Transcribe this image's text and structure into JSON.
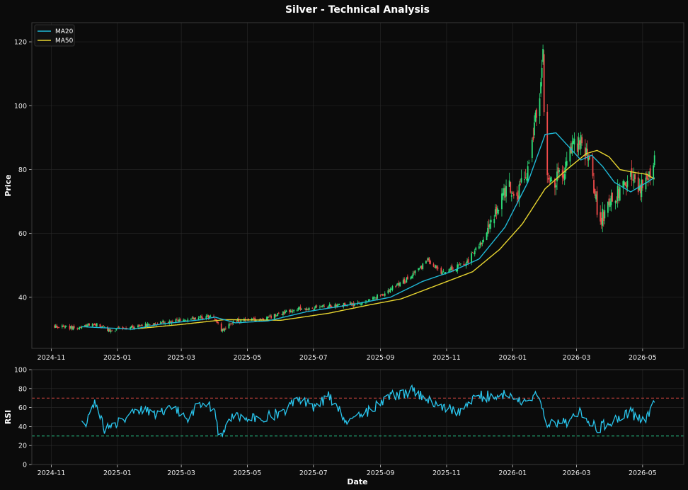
{
  "title": "Silver - Technical Analysis",
  "colors": {
    "background": "#0b0b0b",
    "up": "#2ee07a",
    "down": "#f04a4a",
    "ma20": "#1fb8d6",
    "ma50": "#e8d630",
    "rsi": "#29c6ee",
    "overbought": "#d0453f",
    "oversold": "#27c98a"
  },
  "chart_data": [
    {
      "type": "candlestick",
      "ylabel": "Price",
      "ylim": [
        24,
        126
      ],
      "yticks": [
        40,
        60,
        80,
        100,
        120
      ],
      "xticks": [
        "2024-11",
        "2025-01",
        "2025-03",
        "2025-05",
        "2025-07",
        "2025-09",
        "2025-11",
        "2026-01",
        "2026-03",
        "2026-05"
      ],
      "grid": true,
      "legend_position": "top-left",
      "legend": [
        "MA20",
        "MA50"
      ],
      "close_anchors": [
        [
          "2024-11-04",
          31.0
        ],
        [
          "2024-11-25",
          30.2
        ],
        [
          "2024-12-10",
          31.8
        ],
        [
          "2024-12-25",
          29.6
        ],
        [
          "2025-01-15",
          30.6
        ],
        [
          "2025-02-10",
          32.2
        ],
        [
          "2025-03-05",
          33.0
        ],
        [
          "2025-03-31",
          34.2
        ],
        [
          "2025-04-07",
          29.5
        ],
        [
          "2025-04-20",
          32.5
        ],
        [
          "2025-05-15",
          33.0
        ],
        [
          "2025-06-10",
          36.0
        ],
        [
          "2025-07-10",
          37.0
        ],
        [
          "2025-08-10",
          38.0
        ],
        [
          "2025-09-01",
          40.5
        ],
        [
          "2025-10-01",
          47.0
        ],
        [
          "2025-10-15",
          51.5
        ],
        [
          "2025-10-28",
          47.5
        ],
        [
          "2025-11-20",
          51.0
        ],
        [
          "2025-12-10",
          61.0
        ],
        [
          "2025-12-28",
          76.0
        ],
        [
          "2026-01-05",
          72.0
        ],
        [
          "2026-01-15",
          80.0
        ],
        [
          "2026-01-26",
          106.0
        ],
        [
          "2026-01-29",
          116.0
        ],
        [
          "2026-01-31",
          80.0
        ],
        [
          "2026-02-05",
          76.0
        ],
        [
          "2026-02-15",
          78.0
        ],
        [
          "2026-02-25",
          86.0
        ],
        [
          "2026-03-05",
          89.0
        ],
        [
          "2026-03-12",
          84.0
        ],
        [
          "2026-03-22",
          64.0
        ],
        [
          "2026-04-05",
          71.0
        ],
        [
          "2026-04-20",
          78.0
        ],
        [
          "2026-05-01",
          74.0
        ],
        [
          "2026-05-08",
          80.0
        ],
        [
          "2026-05-12",
          85.0
        ]
      ],
      "ma20_anchors": [
        [
          "2024-11-29",
          30.8
        ],
        [
          "2025-01-15",
          30.0
        ],
        [
          "2025-02-10",
          31.6
        ],
        [
          "2025-03-20",
          33.0
        ],
        [
          "2025-04-01",
          33.8
        ],
        [
          "2025-04-20",
          32.0
        ],
        [
          "2025-05-20",
          32.6
        ],
        [
          "2025-06-25",
          35.5
        ],
        [
          "2025-08-10",
          38.0
        ],
        [
          "2025-09-10",
          40.0
        ],
        [
          "2025-10-10",
          45.0
        ],
        [
          "2025-11-05",
          48.0
        ],
        [
          "2025-12-01",
          52.0
        ],
        [
          "2025-12-25",
          62.0
        ],
        [
          "2026-01-15",
          76.0
        ],
        [
          "2026-01-31",
          91.0
        ],
        [
          "2026-02-10",
          91.5
        ],
        [
          "2026-02-25",
          86.0
        ],
        [
          "2026-03-05",
          83.0
        ],
        [
          "2026-03-15",
          84.5
        ],
        [
          "2026-03-25",
          81.0
        ],
        [
          "2026-04-05",
          76.0
        ],
        [
          "2026-04-20",
          73.0
        ],
        [
          "2026-05-05",
          76.0
        ],
        [
          "2026-05-12",
          77.5
        ]
      ],
      "ma50_anchors": [
        [
          "2025-01-20",
          30.2
        ],
        [
          "2025-03-01",
          31.5
        ],
        [
          "2025-04-10",
          33.0
        ],
        [
          "2025-06-01",
          32.8
        ],
        [
          "2025-07-15",
          35.0
        ],
        [
          "2025-08-20",
          37.5
        ],
        [
          "2025-09-20",
          39.5
        ],
        [
          "2025-10-25",
          44.0
        ],
        [
          "2025-11-25",
          48.0
        ],
        [
          "2025-12-20",
          55.0
        ],
        [
          "2026-01-10",
          63.0
        ],
        [
          "2026-01-31",
          74.0
        ],
        [
          "2026-02-20",
          80.0
        ],
        [
          "2026-03-10",
          85.0
        ],
        [
          "2026-03-20",
          86.0
        ],
        [
          "2026-03-31",
          84.0
        ],
        [
          "2026-04-10",
          80.0
        ],
        [
          "2026-04-25",
          79.0
        ],
        [
          "2026-05-05",
          78.5
        ],
        [
          "2026-05-12",
          77.0
        ]
      ]
    },
    {
      "type": "line",
      "ylabel": "RSI",
      "xlabel": "Date",
      "ylim": [
        0,
        100
      ],
      "yticks": [
        0,
        20,
        40,
        60,
        80,
        100
      ],
      "xticks": [
        "2024-11",
        "2025-01",
        "2025-03",
        "2025-05",
        "2025-07",
        "2025-09",
        "2025-11",
        "2026-01",
        "2026-03",
        "2026-05"
      ],
      "grid": true,
      "thresholds": [
        70,
        30
      ],
      "rsi_anchors": [
        [
          "2024-11-29",
          46
        ],
        [
          "2024-12-03",
          43
        ],
        [
          "2024-12-08",
          62
        ],
        [
          "2024-12-12",
          66
        ],
        [
          "2024-12-20",
          36
        ],
        [
          "2025-01-05",
          45
        ],
        [
          "2025-01-20",
          57
        ],
        [
          "2025-02-05",
          54
        ],
        [
          "2025-02-20",
          62
        ],
        [
          "2025-03-05",
          48
        ],
        [
          "2025-03-20",
          65
        ],
        [
          "2025-04-01",
          60
        ],
        [
          "2025-04-05",
          29
        ],
        [
          "2025-04-18",
          52
        ],
        [
          "2025-05-15",
          50
        ],
        [
          "2025-06-05",
          55
        ],
        [
          "2025-06-15",
          72
        ],
        [
          "2025-07-01",
          60
        ],
        [
          "2025-07-15",
          72
        ],
        [
          "2025-08-01",
          45
        ],
        [
          "2025-08-20",
          55
        ],
        [
          "2025-09-05",
          70
        ],
        [
          "2025-10-01",
          78
        ],
        [
          "2025-10-20",
          65
        ],
        [
          "2025-11-10",
          55
        ],
        [
          "2025-12-01",
          72
        ],
        [
          "2025-12-20",
          72
        ],
        [
          "2025-12-31",
          76
        ],
        [
          "2026-01-10",
          62
        ],
        [
          "2026-01-25",
          78
        ],
        [
          "2026-01-31",
          45
        ],
        [
          "2026-02-20",
          45
        ],
        [
          "2026-03-05",
          55
        ],
        [
          "2026-03-20",
          38
        ],
        [
          "2026-04-05",
          46
        ],
        [
          "2026-04-20",
          55
        ],
        [
          "2026-05-01",
          45
        ],
        [
          "2026-05-12",
          64
        ]
      ]
    }
  ]
}
